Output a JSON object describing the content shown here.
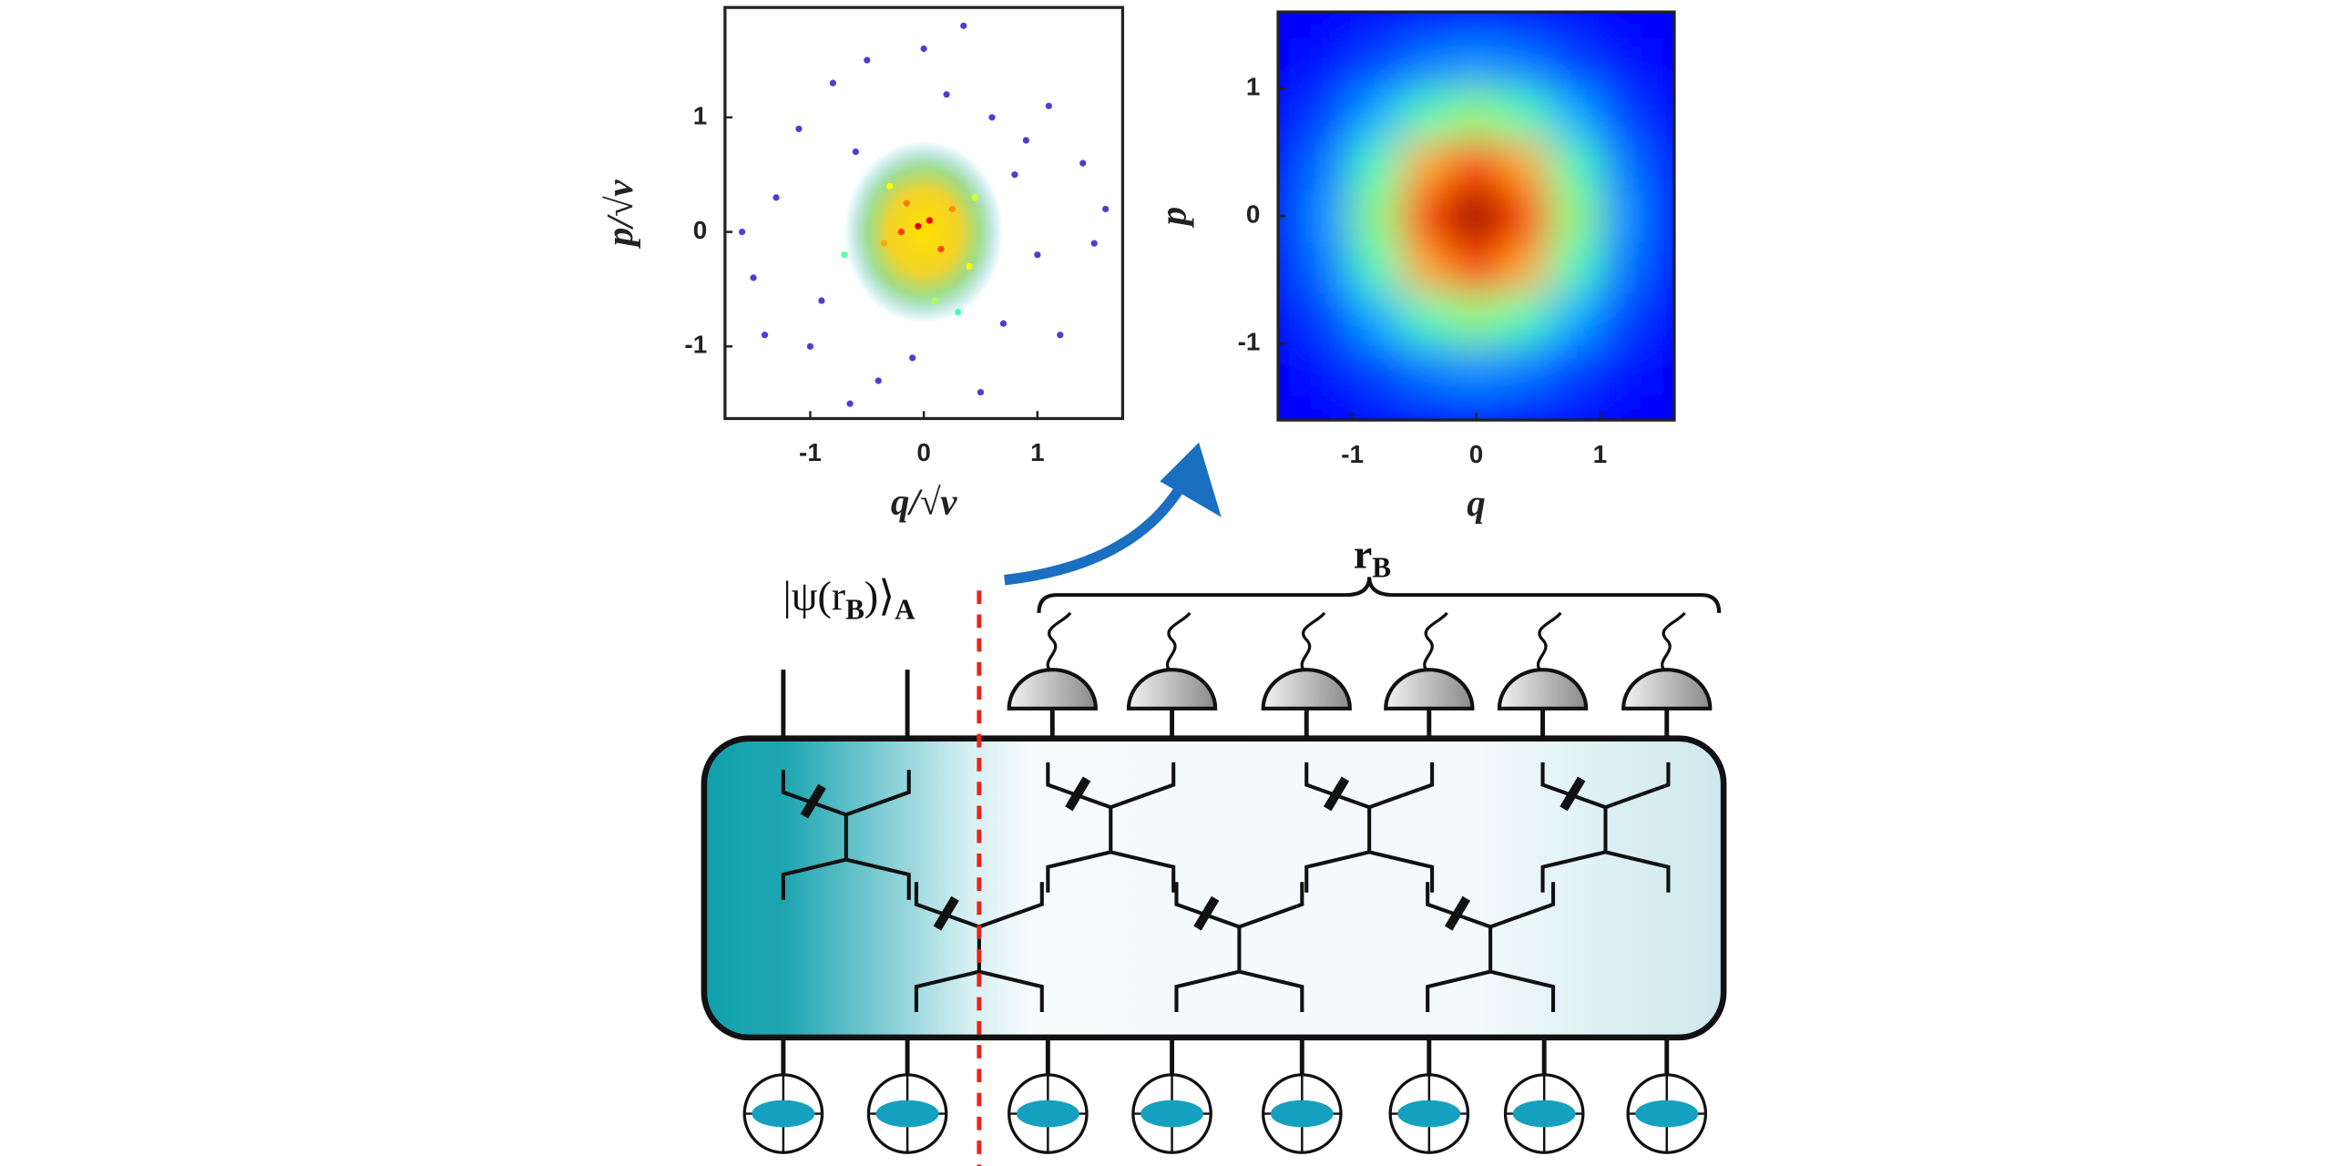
{
  "chart_data": [
    {
      "type": "scatter",
      "x": [
        0.05,
        -0.3,
        0.4,
        -0.6,
        0.8,
        -0.9,
        1.2,
        -1.3,
        0.2,
        -0.1,
        0.6,
        -0.4,
        1.0,
        -1.1,
        0.3,
        -0.7,
        1.4,
        -1.5,
        0.0,
        0.5,
        -0.2,
        0.9,
        -0.8,
        1.5,
        -1.4,
        0.1,
        -0.5,
        0.7,
        -1.0,
        1.1,
        0.25,
        -0.35,
        0.45,
        -0.15,
        0.15,
        -0.05,
        1.6,
        -1.6,
        0.35,
        -0.65
      ],
      "y": [
        0.1,
        0.4,
        -0.3,
        0.7,
        0.5,
        -0.6,
        -0.9,
        0.3,
        1.2,
        -1.1,
        1.0,
        -1.3,
        -0.2,
        0.9,
        -0.7,
        -0.2,
        0.6,
        -0.4,
        1.6,
        -1.4,
        0.0,
        0.8,
        1.3,
        -0.1,
        -0.9,
        -0.6,
        1.5,
        -0.8,
        -1.0,
        1.1,
        0.2,
        -0.1,
        0.3,
        0.25,
        -0.15,
        0.05,
        0.2,
        0.0,
        1.8,
        -1.5
      ],
      "color": "#4b3fd1",
      "xlim": [
        -1.75,
        1.75
      ],
      "ylim": [
        -1.63,
        1.96
      ],
      "xticks": [
        -1,
        0,
        1
      ],
      "yticks": [
        -1,
        0,
        1
      ],
      "xlabel": "q/√ν",
      "ylabel": "p/√ν"
    },
    {
      "type": "heatmap",
      "x": [
        -1.6,
        -1.2,
        -0.8,
        -0.4,
        0,
        0.4,
        0.8,
        1.2,
        1.6
      ],
      "y": [
        -1.6,
        -1.2,
        -0.8,
        -0.4,
        0,
        0.4,
        0.8,
        1.2,
        1.6
      ],
      "z": [
        [
          0.0,
          0.01,
          0.02,
          0.03,
          0.04,
          0.03,
          0.02,
          0.01,
          0.0
        ],
        [
          0.01,
          0.03,
          0.08,
          0.14,
          0.17,
          0.14,
          0.08,
          0.03,
          0.01
        ],
        [
          0.02,
          0.08,
          0.2,
          0.37,
          0.45,
          0.37,
          0.2,
          0.08,
          0.02
        ],
        [
          0.03,
          0.14,
          0.37,
          0.67,
          0.82,
          0.67,
          0.37,
          0.14,
          0.03
        ],
        [
          0.04,
          0.17,
          0.45,
          0.82,
          1,
          0.82,
          0.45,
          0.17,
          0.04
        ],
        [
          0.03,
          0.14,
          0.37,
          0.67,
          0.82,
          0.67,
          0.37,
          0.14,
          0.03
        ],
        [
          0.02,
          0.08,
          0.2,
          0.37,
          0.45,
          0.37,
          0.2,
          0.08,
          0.02
        ],
        [
          0.01,
          0.03,
          0.08,
          0.14,
          0.17,
          0.14,
          0.08,
          0.03,
          0.01
        ],
        [
          0.0,
          0.01,
          0.02,
          0.03,
          0.04,
          0.03,
          0.02,
          0.01,
          0.0
        ]
      ],
      "colormap": "jet",
      "xlim": [
        -1.6,
        1.6
      ],
      "ylim": [
        -1.6,
        1.6
      ],
      "xticks": [
        -1,
        0,
        1
      ],
      "yticks": [
        -1,
        0,
        1
      ],
      "xlabel": "q",
      "ylabel": "p"
    }
  ],
  "diagram": {
    "state_label": [
      "|ψ(r",
      "B",
      ")⟩",
      "A"
    ],
    "measured_label": [
      "r",
      "B"
    ]
  }
}
